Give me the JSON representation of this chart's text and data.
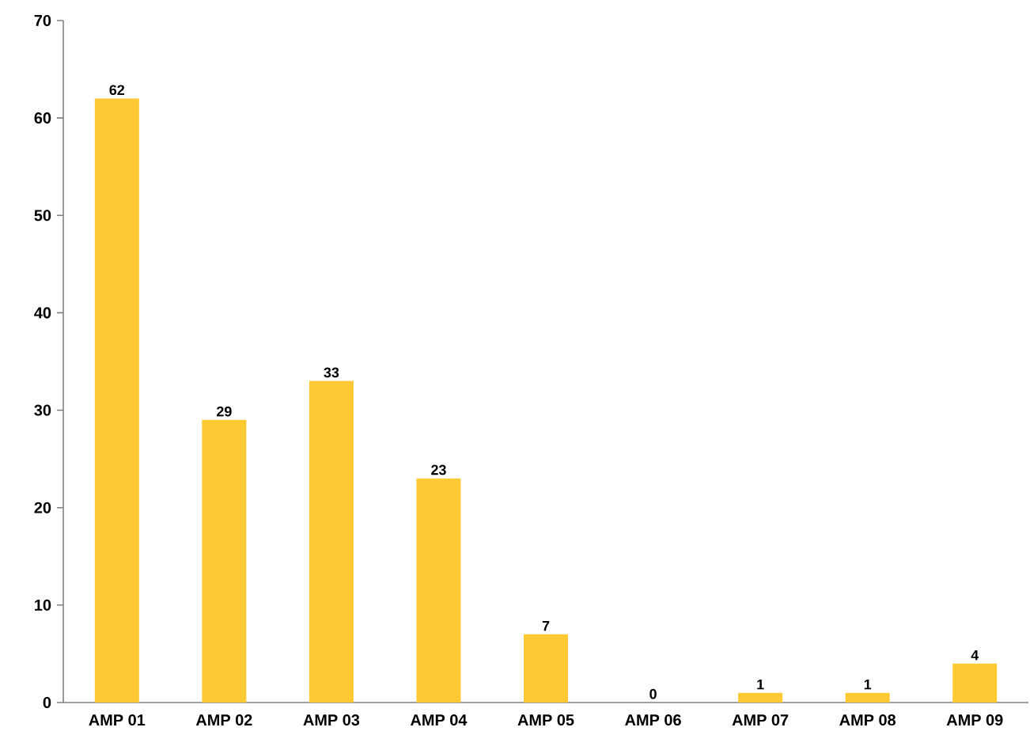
{
  "chart_data": {
    "type": "bar",
    "categories": [
      "AMP 01",
      "AMP 02",
      "AMP 03",
      "AMP 04",
      "AMP 05",
      "AMP 06",
      "AMP 07",
      "AMP 08",
      "AMP 09"
    ],
    "values": [
      62,
      29,
      33,
      23,
      7,
      0,
      1,
      1,
      4
    ],
    "color": "#ffc934",
    "ylim": [
      0,
      70
    ],
    "yticks": [
      0,
      10,
      20,
      30,
      40,
      50,
      60,
      70
    ],
    "data_labels": true
  }
}
